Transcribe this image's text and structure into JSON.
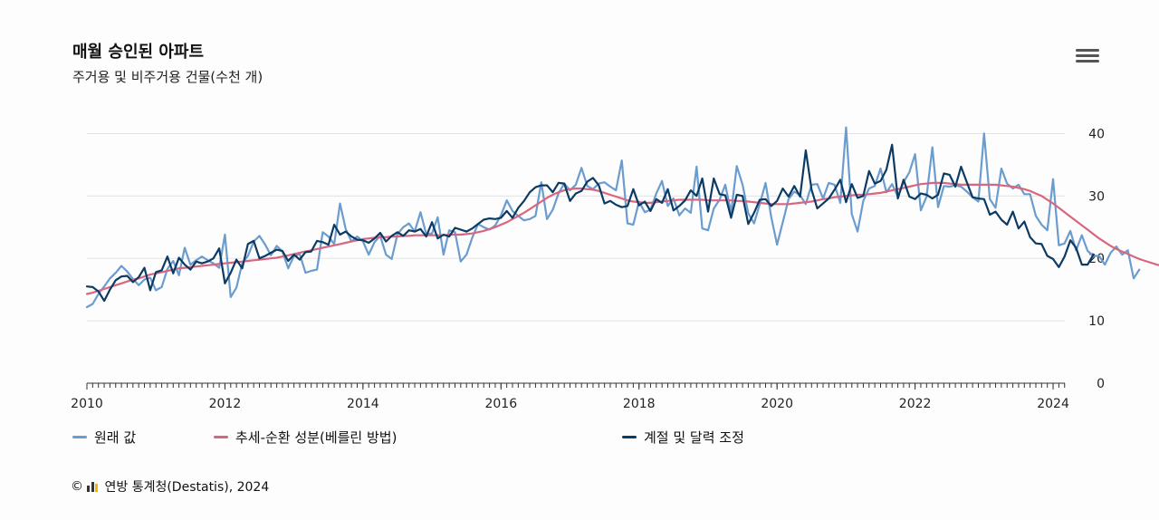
{
  "header": {
    "title": "매월 승인된 아파트",
    "subtitle": "주거용 및 비주거용 건물(수천 개)"
  },
  "menu": {
    "icon": "hamburger-menu-icon"
  },
  "legend": [
    {
      "label": "원래 값",
      "color": "#6a9ccf"
    },
    {
      "label": "추세-순환 성분(베를린 방법)",
      "color": "#d9667f"
    },
    {
      "label": "계절 및 달력 조정",
      "color": "#0b3b64"
    }
  ],
  "footer": {
    "copyright": "©",
    "credit": "연방 통계청(Destatis), 2024"
  },
  "chart_data": {
    "type": "line",
    "title": "매월 승인된 아파트",
    "subtitle": "주거용 및 비주거용 건물(수천 개)",
    "xlabel": "",
    "ylabel": "",
    "xlim": [
      2010,
      2024.17
    ],
    "ylim": [
      0,
      45
    ],
    "x_ticks": [
      "2010",
      "2012",
      "2014",
      "2016",
      "2018",
      "2020",
      "2022",
      "2024"
    ],
    "y_ticks": [
      "0",
      "10",
      "20",
      "30",
      "40"
    ],
    "y_axis_side": "right",
    "grid": "horizontal",
    "legend_position": "bottom",
    "x_start": "2010-01",
    "x_step": "monthly",
    "series": [
      {
        "name": "원래 값",
        "color": "#6a9ccf",
        "values": [
          12.2,
          12.7,
          14.3,
          15.5,
          16.8,
          17.7,
          18.8,
          17.9,
          16.7,
          15.7,
          16.6,
          16.9,
          14.9,
          15.4,
          18.3,
          19.6,
          17.3,
          21.7,
          19.0,
          19.7,
          20.3,
          19.7,
          19.2,
          18.5,
          23.8,
          13.8,
          15.3,
          19.2,
          20.4,
          22.7,
          23.6,
          22.2,
          20.5,
          22.0,
          21.1,
          18.4,
          20.4,
          20.7,
          17.7,
          18.0,
          18.2,
          24.2,
          23.5,
          22.3,
          28.8,
          24.7,
          22.7,
          23.5,
          22.7,
          20.6,
          22.6,
          23.6,
          20.6,
          19.9,
          23.9,
          25.0,
          25.6,
          24.3,
          27.4,
          23.9,
          24.0,
          26.6,
          20.6,
          24.5,
          24.2,
          19.5,
          20.6,
          23.3,
          25.5,
          25.0,
          24.6,
          25.3,
          26.9,
          29.3,
          27.6,
          26.8,
          26.1,
          26.3,
          26.8,
          32.2,
          26.3,
          27.8,
          30.4,
          32.0,
          30.9,
          31.8,
          34.5,
          31.6,
          31.1,
          32.0,
          32.2,
          31.5,
          30.9,
          35.7,
          25.6,
          25.4,
          29.1,
          27.4,
          27.8,
          30.4,
          32.4,
          28.4,
          29.6,
          26.9,
          28.0,
          27.3,
          34.7,
          24.8,
          24.5,
          28.0,
          29.4,
          31.8,
          27.3,
          34.8,
          31.8,
          27.2,
          25.6,
          28.7,
          32.1,
          26.6,
          22.2,
          25.8,
          29.5,
          30.7,
          30.1,
          28.7,
          31.8,
          31.9,
          29.6,
          32.1,
          31.8,
          28.9,
          41.0,
          27.1,
          24.3,
          29.2,
          31.2,
          31.6,
          34.4,
          30.6,
          31.9,
          29.9,
          32.2,
          33.8,
          36.7,
          27.7,
          29.9,
          37.8,
          28.2,
          31.6,
          31.5,
          31.7,
          31.5,
          30.7,
          29.8,
          29.1,
          40.0,
          29.5,
          28.1,
          34.4,
          32.0,
          31.2,
          31.8,
          30.3,
          30.3,
          26.8,
          25.4,
          24.5,
          32.7,
          22.1,
          22.4,
          24.4,
          21.3,
          23.7,
          21.2,
          20.4,
          20.4,
          19.0,
          20.9,
          21.9,
          20.6,
          21.3,
          16.8,
          18.2
        ]
      },
      {
        "name": "추세-순환 성분(베를린 방법)",
        "color": "#d9667f",
        "values": [
          14.3,
          14.5,
          14.8,
          15.1,
          15.4,
          15.7,
          16.0,
          16.3,
          16.6,
          16.8,
          17.1,
          17.4,
          17.6,
          17.8,
          18.0,
          18.2,
          18.4,
          18.5,
          18.6,
          18.7,
          18.8,
          18.9,
          19.0,
          19.1,
          19.2,
          19.3,
          19.4,
          19.5,
          19.6,
          19.7,
          19.8,
          19.9,
          20.0,
          20.1,
          20.3,
          20.5,
          20.7,
          20.9,
          21.1,
          21.3,
          21.5,
          21.7,
          21.9,
          22.1,
          22.3,
          22.5,
          22.7,
          22.9,
          23.1,
          23.2,
          23.3,
          23.4,
          23.4,
          23.5,
          23.5,
          23.6,
          23.6,
          23.7,
          23.7,
          23.7,
          23.7,
          23.7,
          23.7,
          23.8,
          23.8,
          23.8,
          23.9,
          24.0,
          24.2,
          24.4,
          24.7,
          25.0,
          25.4,
          25.8,
          26.3,
          26.8,
          27.3,
          27.9,
          28.5,
          29.1,
          29.7,
          30.2,
          30.6,
          30.9,
          31.1,
          31.2,
          31.2,
          31.1,
          31.0,
          30.8,
          30.5,
          30.2,
          29.9,
          29.6,
          29.3,
          29.1,
          29.0,
          28.9,
          28.9,
          29.0,
          29.1,
          29.2,
          29.3,
          29.4,
          29.4,
          29.4,
          29.4,
          29.4,
          29.3,
          29.3,
          29.3,
          29.3,
          29.3,
          29.2,
          29.2,
          29.1,
          29.0,
          28.9,
          28.8,
          28.7,
          28.7,
          28.7,
          28.7,
          28.8,
          28.9,
          29.0,
          29.1,
          29.3,
          29.5,
          29.6,
          29.8,
          29.9,
          30.0,
          30.1,
          30.2,
          30.2,
          30.3,
          30.4,
          30.5,
          30.7,
          30.9,
          31.1,
          31.3,
          31.5,
          31.7,
          31.9,
          32.0,
          32.1,
          32.1,
          32.1,
          32.0,
          31.9,
          31.8,
          31.8,
          31.8,
          31.8,
          31.8,
          31.8,
          31.8,
          31.7,
          31.6,
          31.5,
          31.3,
          31.1,
          30.8,
          30.4,
          30.0,
          29.4,
          28.8,
          28.1,
          27.4,
          26.7,
          26.0,
          25.3,
          24.6,
          23.9,
          23.2,
          22.6,
          22.0,
          21.5,
          21.1,
          20.7,
          20.3,
          19.9,
          19.6,
          19.3,
          19.0,
          18.8
        ]
      },
      {
        "name": "계절 및 달력 조정",
        "color": "#0b3b64",
        "values": [
          15.5,
          15.4,
          14.7,
          13.2,
          15.0,
          16.5,
          17.1,
          17.2,
          16.2,
          17.0,
          18.5,
          14.9,
          17.8,
          18.1,
          20.3,
          17.6,
          20.1,
          19.0,
          18.2,
          19.5,
          19.2,
          19.5,
          20.0,
          21.6,
          16.0,
          17.7,
          19.8,
          18.4,
          22.3,
          22.8,
          20.0,
          20.4,
          20.9,
          21.4,
          21.2,
          19.6,
          20.6,
          19.8,
          21.0,
          21.1,
          22.8,
          22.6,
          22.2,
          25.4,
          23.8,
          24.3,
          23.5,
          23.0,
          22.9,
          22.5,
          23.2,
          24.1,
          22.7,
          23.6,
          24.2,
          23.6,
          24.5,
          24.3,
          24.7,
          23.5,
          25.8,
          23.2,
          23.8,
          23.5,
          24.9,
          24.6,
          24.3,
          24.8,
          25.5,
          26.2,
          26.4,
          26.3,
          26.5,
          27.6,
          26.5,
          28.1,
          29.2,
          30.6,
          31.4,
          31.7,
          31.7,
          30.6,
          32.1,
          32.0,
          29.2,
          30.4,
          30.8,
          32.3,
          32.9,
          31.7,
          28.8,
          29.2,
          28.6,
          28.2,
          28.4,
          31.1,
          28.5,
          29.1,
          27.6,
          29.5,
          28.9,
          31.1,
          27.7,
          28.4,
          29.3,
          30.9,
          30.0,
          32.8,
          27.5,
          32.8,
          30.3,
          30.1,
          26.5,
          30.2,
          30.0,
          25.5,
          27.3,
          29.4,
          29.5,
          28.4,
          29.2,
          31.2,
          29.9,
          31.6,
          29.9,
          37.3,
          31.0,
          28.0,
          28.8,
          29.6,
          31.0,
          32.6,
          29.0,
          31.9,
          29.7,
          30.0,
          34.0,
          32.0,
          32.4,
          34.2,
          38.2,
          29.6,
          32.6,
          29.9,
          29.5,
          30.4,
          30.2,
          29.6,
          30.2,
          33.6,
          33.4,
          31.5,
          34.7,
          32.2,
          29.8,
          29.6,
          29.5,
          27.0,
          27.5,
          26.2,
          25.4,
          27.5,
          24.8,
          25.9,
          23.4,
          22.4,
          22.3,
          20.4,
          19.9,
          18.6,
          20.3,
          22.9,
          21.7,
          19.0,
          19.0,
          20.6
        ]
      }
    ]
  }
}
